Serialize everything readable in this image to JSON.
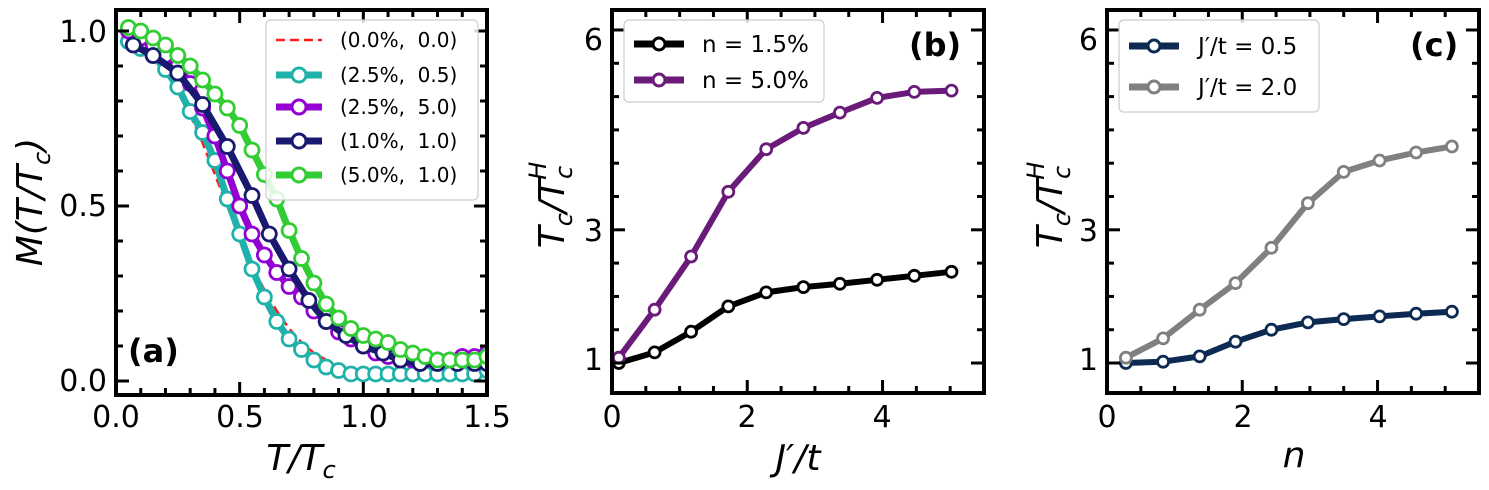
{
  "chart_data": [
    {
      "type": "line",
      "panel_label": "(a)",
      "xlabel": "T/T_c",
      "ylabel": "M(T/T_c)",
      "xlim": [
        0.0,
        1.5
      ],
      "ylim": [
        -0.04,
        1.06
      ],
      "xticks": [
        0.0,
        0.5,
        1.0,
        1.5
      ],
      "xtick_labels": [
        "0.0",
        "0.5",
        "1.0",
        "1.5"
      ],
      "yticks": [
        0.0,
        0.5,
        1.0
      ],
      "ytick_labels": [
        "0.0",
        "0.5",
        "1.0"
      ],
      "legend_position": "upper-right",
      "series": [
        {
          "name": "(0.0%,  0.0)",
          "color": "#ff1a1a",
          "style": "dashed",
          "x": [
            0.06,
            0.1,
            0.15,
            0.2,
            0.25,
            0.3,
            0.35,
            0.4,
            0.45,
            0.5,
            0.55,
            0.6,
            0.65,
            0.7,
            0.75,
            0.8,
            0.85,
            0.9,
            0.95,
            1.0,
            1.05,
            1.1,
            1.15,
            1.2,
            1.25,
            1.3,
            1.35,
            1.4,
            1.45,
            1.5
          ],
          "y": [
            0.98,
            0.96,
            0.93,
            0.89,
            0.83,
            0.76,
            0.68,
            0.59,
            0.5,
            0.41,
            0.33,
            0.26,
            0.2,
            0.15,
            0.11,
            0.08,
            0.06,
            0.04,
            0.03,
            0.02,
            0.02,
            0.02,
            0.02,
            0.02,
            0.02,
            0.02,
            0.02,
            0.02,
            0.03,
            0.03
          ]
        },
        {
          "name": "(2.5%,  0.5)",
          "color": "#20b2aa",
          "style": "solid",
          "x": [
            0.05,
            0.1,
            0.15,
            0.2,
            0.25,
            0.3,
            0.35,
            0.4,
            0.45,
            0.5,
            0.55,
            0.6,
            0.65,
            0.7,
            0.75,
            0.8,
            0.85,
            0.9,
            0.95,
            1.0,
            1.05,
            1.1,
            1.15,
            1.2,
            1.25,
            1.3,
            1.35,
            1.4,
            1.45,
            1.5
          ],
          "y": [
            0.97,
            0.95,
            0.93,
            0.89,
            0.84,
            0.77,
            0.71,
            0.63,
            0.52,
            0.42,
            0.32,
            0.24,
            0.17,
            0.12,
            0.09,
            0.06,
            0.04,
            0.03,
            0.02,
            0.02,
            0.02,
            0.02,
            0.02,
            0.02,
            0.02,
            0.02,
            0.02,
            0.02,
            0.02,
            0.03
          ]
        },
        {
          "name": "(2.5%,  5.0)",
          "color": "#9400d3",
          "style": "solid",
          "x": [
            0.05,
            0.1,
            0.15,
            0.2,
            0.25,
            0.3,
            0.35,
            0.4,
            0.45,
            0.5,
            0.55,
            0.6,
            0.65,
            0.7,
            0.75,
            0.8,
            0.85,
            0.9,
            0.95,
            1.0,
            1.05,
            1.1,
            1.15,
            1.2,
            1.25,
            1.3,
            1.35,
            1.4,
            1.45,
            1.5
          ],
          "y": [
            1.0,
            0.98,
            0.96,
            0.93,
            0.9,
            0.85,
            0.78,
            0.7,
            0.6,
            0.5,
            0.42,
            0.36,
            0.31,
            0.27,
            0.24,
            0.2,
            0.17,
            0.14,
            0.12,
            0.1,
            0.08,
            0.07,
            0.06,
            0.06,
            0.06,
            0.06,
            0.06,
            0.07,
            0.07,
            0.08
          ]
        },
        {
          "name": "(1.0%,  1.0)",
          "color": "#191970",
          "style": "solid",
          "x": [
            0.07,
            0.15,
            0.25,
            0.35,
            0.45,
            0.55,
            0.62,
            0.7,
            0.78,
            0.85,
            0.93,
            1.0,
            1.08,
            1.15,
            1.23,
            1.3,
            1.38,
            1.45,
            1.5
          ],
          "y": [
            0.96,
            0.93,
            0.88,
            0.79,
            0.67,
            0.53,
            0.42,
            0.32,
            0.23,
            0.17,
            0.13,
            0.1,
            0.08,
            0.06,
            0.05,
            0.05,
            0.05,
            0.05,
            0.05
          ]
        },
        {
          "name": "(5.0%,  1.0)",
          "color": "#32cd32",
          "style": "solid",
          "x": [
            0.05,
            0.1,
            0.15,
            0.2,
            0.25,
            0.3,
            0.35,
            0.4,
            0.45,
            0.5,
            0.55,
            0.6,
            0.65,
            0.7,
            0.75,
            0.8,
            0.85,
            0.9,
            0.95,
            1.0,
            1.05,
            1.1,
            1.15,
            1.2,
            1.25,
            1.3,
            1.35,
            1.4,
            1.45,
            1.5
          ],
          "y": [
            1.01,
            1.0,
            0.98,
            0.96,
            0.93,
            0.9,
            0.86,
            0.82,
            0.78,
            0.73,
            0.66,
            0.59,
            0.52,
            0.43,
            0.35,
            0.28,
            0.22,
            0.18,
            0.15,
            0.13,
            0.12,
            0.11,
            0.09,
            0.08,
            0.07,
            0.06,
            0.06,
            0.06,
            0.06,
            0.07
          ]
        }
      ]
    },
    {
      "type": "line",
      "panel_label": "(b)",
      "xlabel": "J′/t",
      "ylabel": "T_c/T_c^H",
      "xlim": [
        0.0,
        5.5
      ],
      "ylim": [
        0.55,
        6.3
      ],
      "xticks": [
        0,
        2,
        4
      ],
      "xtick_labels": [
        "0",
        "2",
        "4"
      ],
      "yticks": [
        1,
        3,
        6
      ],
      "ytick_labels": [
        "1",
        "3",
        "6"
      ],
      "legend_position": "upper-left",
      "series": [
        {
          "name": "n = 1.5%",
          "color": "#000000",
          "x": [
            0.1,
            0.63,
            1.17,
            1.72,
            2.28,
            2.83,
            3.37,
            3.92,
            4.47,
            5.02
          ],
          "y": [
            1.0,
            1.16,
            1.47,
            1.85,
            2.06,
            2.14,
            2.19,
            2.25,
            2.31,
            2.37
          ]
        },
        {
          "name": "n = 5.0%",
          "color": "#6a1b7a",
          "x": [
            0.1,
            0.63,
            1.17,
            1.72,
            2.28,
            2.83,
            3.37,
            3.92,
            4.47,
            5.02
          ],
          "y": [
            1.08,
            1.8,
            2.6,
            3.57,
            4.21,
            4.53,
            4.76,
            4.98,
            5.07,
            5.09
          ]
        }
      ]
    },
    {
      "type": "line",
      "panel_label": "(c)",
      "xlabel": "n",
      "ylabel": "T_c/T_c^H",
      "xlim": [
        0.0,
        5.5
      ],
      "ylim": [
        0.55,
        6.3
      ],
      "xticks": [
        0,
        2,
        4
      ],
      "xtick_labels": [
        "0",
        "2",
        "4"
      ],
      "yticks": [
        1,
        3,
        6
      ],
      "ytick_labels": [
        "1",
        "3",
        "6"
      ],
      "legend_position": "upper-left",
      "series": [
        {
          "name": "J′/t = 0.5",
          "color": "#0d2a52",
          "x": [
            0.28,
            0.83,
            1.37,
            1.9,
            2.43,
            2.97,
            3.5,
            4.03,
            4.57,
            5.1
          ],
          "y": [
            1.0,
            1.02,
            1.1,
            1.32,
            1.5,
            1.61,
            1.66,
            1.7,
            1.74,
            1.77
          ]
        },
        {
          "name": "J′/t = 2.0",
          "color": "#808080",
          "x": [
            0.28,
            0.83,
            1.37,
            1.9,
            2.43,
            2.97,
            3.5,
            4.03,
            4.57,
            5.1
          ],
          "y": [
            1.08,
            1.37,
            1.8,
            2.2,
            2.73,
            3.4,
            3.87,
            4.04,
            4.16,
            4.25
          ]
        }
      ]
    }
  ]
}
